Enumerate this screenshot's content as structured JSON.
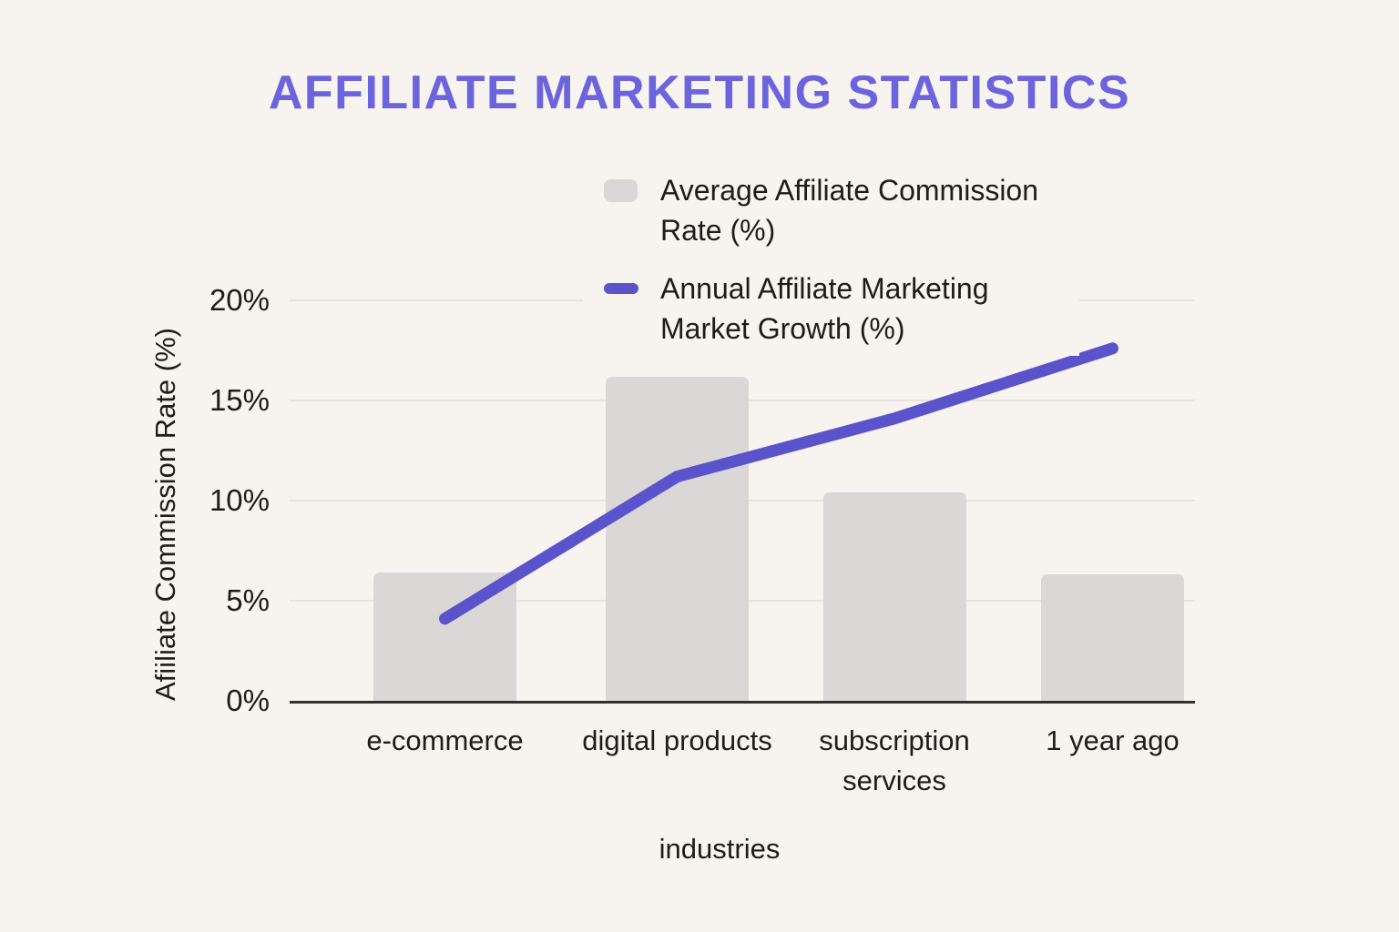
{
  "page": {
    "background": "#f7f3ef"
  },
  "title": {
    "text": "AFFILIATE MARKETING STATISTICS",
    "color": "#6c63de"
  },
  "chart_data": {
    "type": "bar+line",
    "title": "AFFILIATE MARKETING STATISTICS",
    "categories": [
      "e-commerce",
      "digital products",
      "subscription services",
      "1 year ago"
    ],
    "series": [
      {
        "name": "Average Affiliate Commission Rate (%)",
        "type": "bar",
        "color": "#d9d8d6",
        "values": [
          6.4,
          16.2,
          10.4,
          6.3
        ]
      },
      {
        "name": "Annual Affiliate Marketing Market Growth (%)",
        "type": "line",
        "color": "#5b53cc",
        "values": [
          4.1,
          11.2,
          14.1,
          17.6
        ]
      }
    ],
    "xlabel": "industries",
    "ylabel": "Afiiliate Commission Rate (%)",
    "yticks": [
      "0%",
      "5%",
      "10%",
      "15%",
      "20%"
    ],
    "ytick_values": [
      0,
      5,
      10,
      15,
      20
    ],
    "ylim": [
      0,
      20
    ],
    "grid": "horizontal",
    "legend_position": "top-center"
  },
  "legend": {
    "items": [
      {
        "lines": [
          "Average Affiliate Commission",
          "Rate (%)"
        ],
        "swatch": "bar",
        "color": "#d9d8d6"
      },
      {
        "lines": [
          "Annual Affiliate Marketing",
          "Market Growth (%)"
        ],
        "swatch": "line",
        "color": "#5b53cc"
      }
    ]
  }
}
